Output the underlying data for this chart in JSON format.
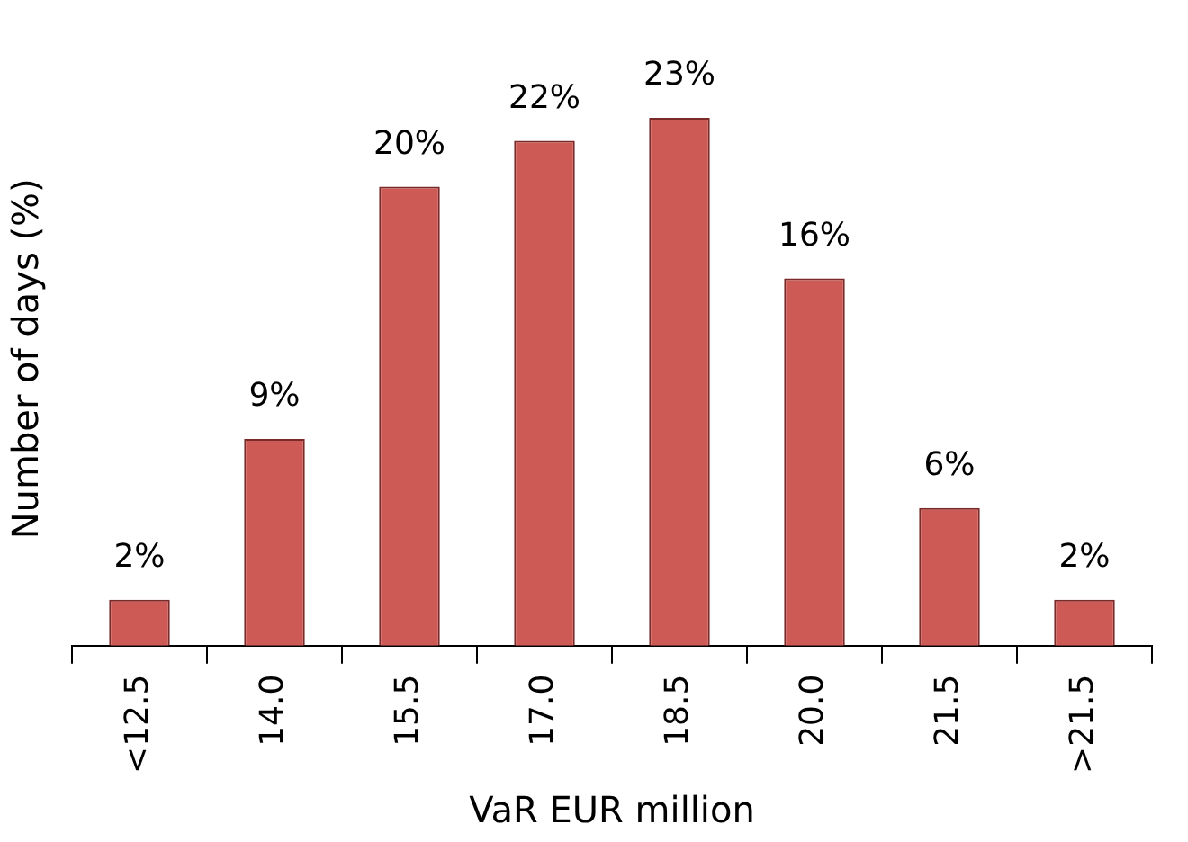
{
  "chart_data": {
    "type": "bar",
    "xlabel": "VaR EUR million",
    "ylabel": "Number of days (%)",
    "categories": [
      "<12.5",
      "14.0",
      "15.5",
      "17.0",
      "18.5",
      "20.0",
      "21.5",
      ">21.5"
    ],
    "values": [
      2,
      9,
      20,
      22,
      23,
      16,
      6,
      2
    ],
    "value_labels": [
      "2%",
      "9%",
      "20%",
      "22%",
      "23%",
      "16%",
      "6%",
      "2%"
    ],
    "color": "#cd5a55",
    "grid": false,
    "legend": false,
    "tick_labels": "x"
  }
}
